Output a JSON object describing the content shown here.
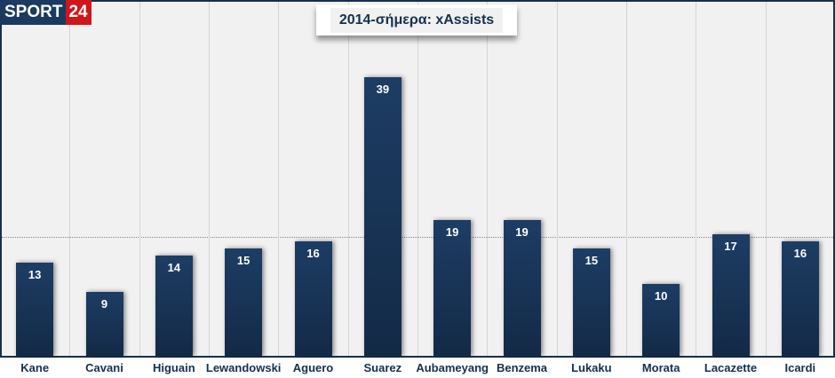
{
  "logo": {
    "text_a": "SPORT",
    "text_b": "24"
  },
  "chart_data": {
    "type": "bar",
    "title": "2014-σήμερα: xAssists",
    "categories": [
      "Kane",
      "Cavani",
      "Higuain",
      "Lewandowski",
      "Aguero",
      "Suarez",
      "Aubameyang",
      "Benzema",
      "Lukaku",
      "Morata",
      "Lacazette",
      "Icardi"
    ],
    "values": [
      13,
      9,
      14,
      15,
      16,
      39,
      19,
      19,
      15,
      10,
      17,
      16
    ],
    "xlabel": "",
    "ylabel": "",
    "ylim": [
      0,
      40
    ],
    "colors": {
      "bar": "#1b3a5f",
      "accent": "#d0151b"
    }
  }
}
